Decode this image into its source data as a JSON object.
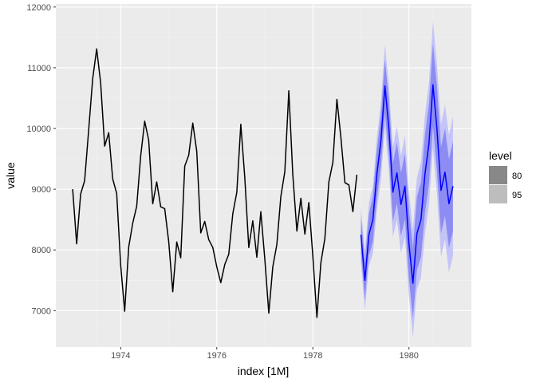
{
  "chart_data": {
    "type": "line",
    "xlabel": "index [1M]",
    "ylabel": "value",
    "xlim": [
      1972.65,
      1981.3
    ],
    "ylim": [
      6400,
      12050
    ],
    "x_ticks": [
      {
        "value": 1974,
        "label": "1974"
      },
      {
        "value": 1976,
        "label": "1976"
      },
      {
        "value": 1978,
        "label": "1978"
      },
      {
        "value": 1980,
        "label": "1980"
      }
    ],
    "y_ticks": [
      {
        "value": 7000,
        "label": "7000"
      },
      {
        "value": 8000,
        "label": "8000"
      },
      {
        "value": 9000,
        "label": "9000"
      },
      {
        "value": 10000,
        "label": "10000"
      },
      {
        "value": 11000,
        "label": "11000"
      },
      {
        "value": 12000,
        "label": "12000"
      }
    ],
    "grid": true,
    "series": [
      {
        "start": "1973-01",
        "values": [
          9000,
          8100,
          8920,
          9140,
          9980,
          10820,
          11310,
          10750,
          9710,
          9930,
          9170,
          8930,
          7750,
          6990,
          8050,
          8440,
          8720,
          9550,
          10120,
          9810,
          8760,
          9120,
          8710,
          8680,
          8140,
          7310,
          8130,
          7870,
          9380,
          9560,
          10090,
          9620,
          8280,
          8470,
          8170,
          8040,
          7720,
          7460,
          7760,
          7930,
          8600,
          8950,
          10070,
          9190,
          8040,
          8480,
          7880,
          8630,
          7850,
          6960,
          7720,
          8090,
          8880,
          9290,
          10620,
          9240,
          8310,
          8850,
          8260,
          8780,
          7900,
          6890,
          7790,
          8190,
          9120,
          9440,
          10480,
          9850,
          9110,
          9070,
          8630,
          9240
        ]
      },
      {
        "start": "1979-01",
        "forecast": true,
        "mean": [
          8250,
          7500,
          8250,
          8500,
          9250,
          9800,
          10700,
          10000,
          8950,
          9270,
          8750,
          9050,
          8100,
          7450,
          8270,
          8500,
          9250,
          9750,
          10720,
          10000,
          8980,
          9280,
          8760,
          9050
        ],
        "pi80_half_width": [
          300,
          320,
          340,
          370,
          400,
          420,
          440,
          460,
          480,
          500,
          520,
          540,
          560,
          580,
          600,
          620,
          640,
          660,
          680,
          700,
          710,
          720,
          730,
          740
        ],
        "pi95_half_width": [
          460,
          490,
          520,
          560,
          600,
          640,
          680,
          710,
          740,
          770,
          800,
          830,
          860,
          890,
          920,
          950,
          980,
          1010,
          1040,
          1070,
          1090,
          1110,
          1130,
          1150
        ]
      }
    ],
    "legend": {
      "title": "level",
      "placement": "right",
      "items": [
        {
          "label": "80"
        },
        {
          "label": "95"
        }
      ]
    }
  },
  "colors": {
    "panel_background": "#ebebeb",
    "grid_major": "#ffffff",
    "grid_minor": "#f2f2f2",
    "history_line": "#000000",
    "forecast_line": "#0000ff",
    "pi80_fill": "#8c8cf2",
    "pi95_fill": "#c4c4f8",
    "legend_80": "#888888",
    "legend_95": "#bdbdbd"
  }
}
